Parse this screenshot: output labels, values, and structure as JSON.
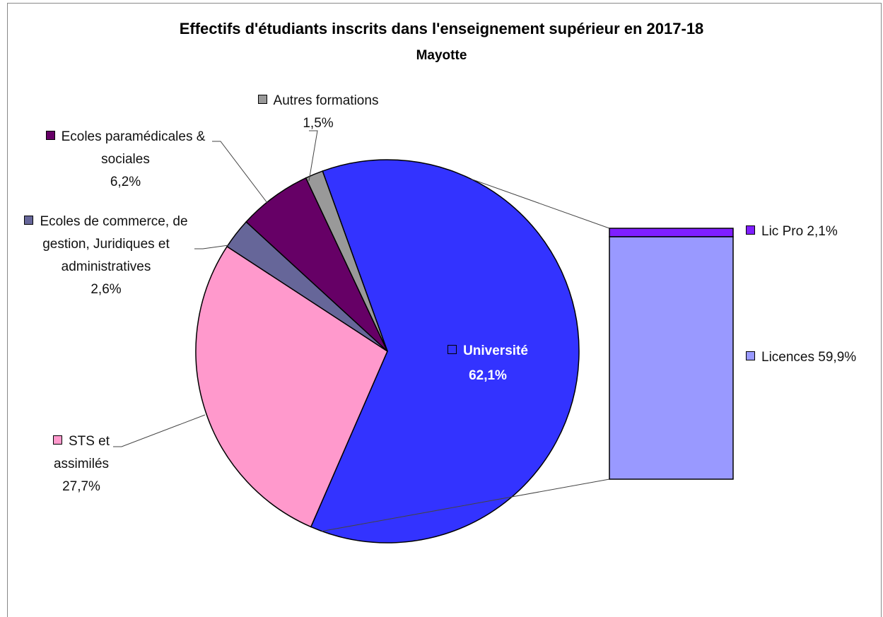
{
  "chart_data": {
    "type": "pie",
    "title": "Effectifs d'étudiants inscrits dans l'enseignement supérieur en 2017-18",
    "subtitle": "Mayotte",
    "categories": [
      "Université",
      "STS et assimilés",
      "Ecoles de commerce, de gestion, Juridiques et administratives",
      "Ecoles paramédicales & sociales",
      "Autres formations"
    ],
    "values": [
      62.1,
      27.7,
      2.6,
      6.2,
      1.5
    ],
    "value_labels": [
      "62,1%",
      "27,7%",
      "2,6%",
      "6,2%",
      "1,5%"
    ],
    "colors": [
      "#3333ff",
      "#ff99cc",
      "#666699",
      "#660066",
      "#999999"
    ],
    "breakdown": {
      "type": "bar",
      "categories": [
        "Lic Pro",
        "Licences"
      ],
      "values": [
        2.1,
        59.9
      ],
      "value_labels": [
        "2,1%",
        "59,9%"
      ],
      "colors": [
        "#7f1fff",
        "#9999ff"
      ]
    }
  }
}
